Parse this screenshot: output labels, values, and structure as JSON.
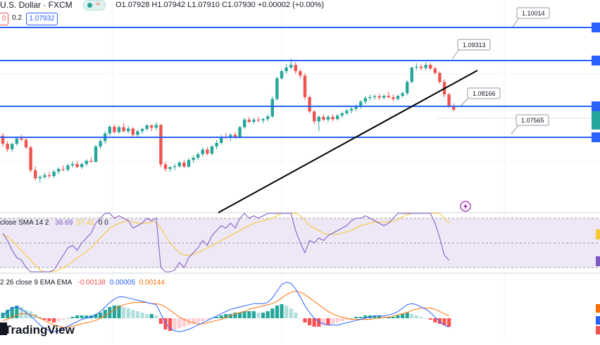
{
  "header": {
    "symbol": "U.S. Dollar · FXCM",
    "ohlc": "O1.07928 H1.07942 L1.07910 C1.07930 +0.00002 (+0.00%)",
    "tag_left": "0",
    "spread": "0.2",
    "bid_box": "1.07932"
  },
  "price_labels": [
    "1.10014",
    "1.09313",
    "1.08166",
    "1.07565"
  ],
  "rsi": {
    "title": "close SMA 14 2",
    "v1": "36.69",
    "v2": "57.41",
    "v3": "0 0"
  },
  "macd": {
    "title": "2 26 close 9 EMA EMA",
    "v1": "-0.00138",
    "v2": "0.00005",
    "v3": "0.00144"
  },
  "watermark": "TradingView",
  "colors": {
    "up": "#26a69a",
    "down": "#ef5350",
    "level": "#2962ff",
    "rsi": "#7e57c2",
    "rsi_ma": "#f7c830",
    "rsi_bg": "#ede7f6",
    "macd": "#2962ff",
    "signal": "#ff6d00"
  },
  "chart_data": [
    {
      "type": "candlestick",
      "title": "",
      "horizontal_levels": [
        1.10014,
        1.09313,
        1.08166,
        1.07565
      ],
      "trendline": "rising support from 1.0670 to 1.0935",
      "ylim": [
        1.063,
        1.103
      ],
      "candles": [
        [
          1.076,
          1.0766,
          1.0735,
          1.0742
        ],
        [
          1.0742,
          1.0748,
          1.0724,
          1.073
        ],
        [
          1.073,
          1.0744,
          1.0724,
          1.0742
        ],
        [
          1.0742,
          1.0758,
          1.0738,
          1.0754
        ],
        [
          1.0754,
          1.0762,
          1.0748,
          1.0751
        ],
        [
          1.0751,
          1.0756,
          1.0731,
          1.0734
        ],
        [
          1.0734,
          1.0738,
          1.0678,
          1.0683
        ],
        [
          1.0683,
          1.0692,
          1.066,
          1.0665
        ],
        [
          1.0665,
          1.0672,
          1.0655,
          1.0668
        ],
        [
          1.0668,
          1.0678,
          1.0664,
          1.0672
        ],
        [
          1.0672,
          1.068,
          1.0665,
          1.067
        ],
        [
          1.067,
          1.0684,
          1.0666,
          1.068
        ],
        [
          1.068,
          1.069,
          1.0674,
          1.0686
        ],
        [
          1.0686,
          1.0694,
          1.068,
          1.0684
        ],
        [
          1.0684,
          1.0698,
          1.068,
          1.0694
        ],
        [
          1.0694,
          1.0703,
          1.0689,
          1.0697
        ],
        [
          1.0697,
          1.0704,
          1.0688,
          1.069
        ],
        [
          1.069,
          1.07,
          1.0686,
          1.0697
        ],
        [
          1.0697,
          1.0708,
          1.0692,
          1.0704
        ],
        [
          1.0704,
          1.0712,
          1.07,
          1.0702
        ],
        [
          1.0702,
          1.074,
          1.07,
          1.0736
        ],
        [
          1.0736,
          1.0752,
          1.0731,
          1.0748
        ],
        [
          1.0748,
          1.077,
          1.0742,
          1.0765
        ],
        [
          1.0765,
          1.0784,
          1.076,
          1.078
        ],
        [
          1.078,
          1.0785,
          1.0765,
          1.0768
        ],
        [
          1.0768,
          1.0783,
          1.0765,
          1.0779
        ],
        [
          1.0779,
          1.0788,
          1.0767,
          1.077
        ],
        [
          1.077,
          1.0782,
          1.0765,
          1.0776
        ],
        [
          1.0776,
          1.0779,
          1.0758,
          1.0762
        ],
        [
          1.0762,
          1.0774,
          1.0756,
          1.077
        ],
        [
          1.077,
          1.0778,
          1.0764,
          1.0775
        ],
        [
          1.0775,
          1.0786,
          1.077,
          1.0783
        ],
        [
          1.0783,
          1.0785,
          1.077,
          1.0778
        ],
        [
          1.0778,
          1.079,
          1.0772,
          1.0784
        ],
        [
          1.0784,
          1.0786,
          1.069,
          1.0696
        ],
        [
          1.0696,
          1.0702,
          1.068,
          1.0686
        ],
        [
          1.0686,
          1.0692,
          1.068,
          1.069
        ],
        [
          1.069,
          1.0698,
          1.0684,
          1.0692
        ],
        [
          1.0692,
          1.0704,
          1.0688,
          1.07
        ],
        [
          1.07,
          1.0706,
          1.0688,
          1.0691
        ],
        [
          1.0691,
          1.071,
          1.0688,
          1.0706
        ],
        [
          1.0706,
          1.0716,
          1.07,
          1.0711
        ],
        [
          1.0711,
          1.0724,
          1.0706,
          1.0719
        ],
        [
          1.0719,
          1.0734,
          1.0714,
          1.0729
        ],
        [
          1.0729,
          1.0735,
          1.0716,
          1.072
        ],
        [
          1.072,
          1.074,
          1.0716,
          1.0736
        ],
        [
          1.0736,
          1.075,
          1.073,
          1.0744
        ],
        [
          1.0744,
          1.0762,
          1.074,
          1.0758
        ],
        [
          1.0758,
          1.0766,
          1.0752,
          1.0755
        ],
        [
          1.0755,
          1.0766,
          1.0748,
          1.0762
        ],
        [
          1.0762,
          1.0768,
          1.0754,
          1.0757
        ],
        [
          1.0757,
          1.0782,
          1.0754,
          1.0779
        ],
        [
          1.0779,
          1.08,
          1.0775,
          1.0796
        ],
        [
          1.0796,
          1.0802,
          1.0788,
          1.0791
        ],
        [
          1.0791,
          1.08,
          1.0786,
          1.0796
        ],
        [
          1.0796,
          1.0802,
          1.079,
          1.0794
        ],
        [
          1.0794,
          1.08,
          1.0788,
          1.0797
        ],
        [
          1.0797,
          1.0808,
          1.0792,
          1.0803
        ],
        [
          1.0803,
          1.0848,
          1.08,
          1.0842
        ],
        [
          1.0842,
          1.0892,
          1.0838,
          1.0888
        ],
        [
          1.0888,
          1.0908,
          1.0884,
          1.0904
        ],
        [
          1.0904,
          1.092,
          1.0898,
          1.0912
        ],
        [
          1.0912,
          1.0932,
          1.0908,
          1.0918
        ],
        [
          1.0918,
          1.0924,
          1.0898,
          1.0904
        ],
        [
          1.0904,
          1.0908,
          1.0888,
          1.0894
        ],
        [
          1.0894,
          1.09,
          1.084,
          1.0846
        ],
        [
          1.0846,
          1.085,
          1.081,
          1.0814
        ],
        [
          1.0814,
          1.0818,
          1.0786,
          1.0792
        ],
        [
          1.0792,
          1.0806,
          1.077,
          1.0802
        ],
        [
          1.0802,
          1.0808,
          1.0792,
          1.0796
        ],
        [
          1.0796,
          1.0806,
          1.079,
          1.0802
        ],
        [
          1.0802,
          1.0808,
          1.0792,
          1.0797
        ],
        [
          1.0797,
          1.0808,
          1.0794,
          1.0805
        ],
        [
          1.0805,
          1.0814,
          1.08,
          1.081
        ],
        [
          1.081,
          1.082,
          1.0806,
          1.0816
        ],
        [
          1.0816,
          1.0824,
          1.081,
          1.082
        ],
        [
          1.082,
          1.083,
          1.0814,
          1.0826
        ],
        [
          1.0826,
          1.084,
          1.082,
          1.0836
        ],
        [
          1.0836,
          1.0848,
          1.083,
          1.0844
        ],
        [
          1.0844,
          1.0852,
          1.0838,
          1.0846
        ],
        [
          1.0846,
          1.0852,
          1.084,
          1.0848
        ],
        [
          1.0848,
          1.0854,
          1.084,
          1.0845
        ],
        [
          1.0845,
          1.0852,
          1.084,
          1.0849
        ],
        [
          1.0849,
          1.0858,
          1.0843,
          1.0846
        ],
        [
          1.0846,
          1.0852,
          1.0836,
          1.0842
        ],
        [
          1.0842,
          1.0852,
          1.0838,
          1.0849
        ],
        [
          1.0849,
          1.0858,
          1.0845,
          1.0855
        ],
        [
          1.0855,
          1.0884,
          1.085,
          1.088
        ],
        [
          1.088,
          1.0914,
          1.0876,
          1.0912
        ],
        [
          1.0912,
          1.0922,
          1.0906,
          1.0914
        ],
        [
          1.0914,
          1.092,
          1.0906,
          1.0911
        ],
        [
          1.0911,
          1.0924,
          1.0906,
          1.0918
        ],
        [
          1.0918,
          1.0922,
          1.0906,
          1.091
        ],
        [
          1.091,
          1.0914,
          1.0896,
          1.09
        ],
        [
          1.09,
          1.0904,
          1.0876,
          1.088
        ],
        [
          1.088,
          1.0886,
          1.0846,
          1.0852
        ],
        [
          1.0852,
          1.0856,
          1.0822,
          1.0826
        ],
        [
          1.0826,
          1.0832,
          1.0814,
          1.0818
        ]
      ]
    },
    {
      "type": "line",
      "title": "RSI close SMA 14 2",
      "series": [
        {
          "values": [
            58,
            52,
            44,
            38,
            36,
            30,
            22,
            18,
            16,
            20,
            24,
            28,
            34,
            40,
            46,
            48,
            44,
            50,
            54,
            58,
            66,
            70,
            74,
            76,
            70,
            72,
            70,
            68,
            62,
            64,
            66,
            70,
            68,
            70,
            30,
            22,
            26,
            28,
            34,
            30,
            38,
            42,
            46,
            52,
            48,
            56,
            60,
            64,
            62,
            66,
            62,
            70,
            74,
            70,
            72,
            70,
            72,
            75,
            84,
            88,
            90,
            84,
            78,
            60,
            50,
            42,
            52,
            50,
            54,
            52,
            56,
            58,
            60,
            62,
            64,
            68,
            70,
            70,
            72,
            70,
            68,
            66,
            64,
            66,
            70,
            74,
            82,
            88,
            84,
            86,
            82,
            80,
            76,
            66,
            54,
            40,
            36
          ]
        },
        {
          "values": [
            56,
            55,
            52,
            48,
            44,
            40,
            36,
            32,
            28,
            26,
            25,
            26,
            28,
            30,
            32,
            35,
            38,
            40,
            43,
            46,
            50,
            54,
            58,
            62,
            64,
            66,
            67,
            68,
            67,
            66,
            66,
            66,
            67,
            67,
            62,
            56,
            50,
            46,
            42,
            40,
            40,
            41,
            42,
            44,
            46,
            48,
            50,
            52,
            54,
            56,
            58,
            60,
            62,
            64,
            66,
            67,
            68,
            69,
            70,
            72,
            74,
            76,
            77,
            76,
            72,
            68,
            64,
            62,
            60,
            58,
            57,
            57,
            57,
            58,
            59,
            60,
            62,
            64,
            65,
            66,
            67,
            67,
            67,
            67,
            68,
            69,
            71,
            73,
            75,
            76,
            77,
            78,
            78,
            77,
            74,
            70,
            66
          ]
        }
      ]
    },
    {
      "type": "bar",
      "title": "MACD 2 26 close 9 EMA EMA",
      "series": [
        {
          "name": "histogram",
          "values": [
            4,
            6,
            8,
            9,
            8,
            6,
            5,
            3,
            1,
            -1,
            -2,
            -3,
            -2,
            -1,
            0,
            1,
            2,
            2,
            2,
            2,
            3,
            4,
            6,
            8,
            9,
            9,
            8,
            7,
            6,
            5,
            4,
            3,
            3,
            2,
            -4,
            -8,
            -9,
            -8,
            -7,
            -6,
            -5,
            -4,
            -3,
            -2,
            -1,
            0,
            1,
            2,
            3,
            3,
            4,
            4,
            5,
            5,
            5,
            4,
            4,
            5,
            7,
            9,
            10,
            9,
            7,
            4,
            0,
            -3,
            -5,
            -6,
            -6,
            -5,
            -5,
            -4,
            -3,
            -2,
            -1,
            0,
            1,
            1,
            2,
            2,
            2,
            2,
            1,
            1,
            1,
            2,
            3,
            4,
            3,
            2,
            1,
            0,
            -1,
            -3,
            -4,
            -5,
            -6
          ]
        },
        {
          "name": "macd",
          "values": [
            2,
            6,
            9,
            10,
            8,
            5,
            2,
            -2,
            -6,
            -9,
            -11,
            -12,
            -11,
            -9,
            -7,
            -5,
            -3,
            -1,
            0,
            1,
            3,
            6,
            10,
            14,
            17,
            19,
            19,
            18,
            17,
            16,
            15,
            14,
            13,
            12,
            4,
            -4,
            -9,
            -11,
            -12,
            -11,
            -10,
            -8,
            -6,
            -4,
            -2,
            0,
            2,
            4,
            6,
            8,
            9,
            10,
            11,
            12,
            13,
            13,
            13,
            14,
            18,
            24,
            30,
            32,
            31,
            26,
            19,
            11,
            5,
            0,
            -3,
            -5,
            -6,
            -6,
            -6,
            -5,
            -4,
            -3,
            -2,
            -1,
            0,
            1,
            2,
            2,
            2,
            3,
            4,
            6,
            9,
            12,
            13,
            12,
            10,
            8,
            5,
            1,
            -3,
            -6,
            -8
          ]
        },
        {
          "name": "signal",
          "values": [
            -2,
            -1,
            1,
            3,
            4,
            4,
            3,
            2,
            0,
            -2,
            -4,
            -6,
            -7,
            -8,
            -8,
            -7,
            -6,
            -5,
            -4,
            -3,
            -2,
            0,
            2,
            5,
            8,
            10,
            12,
            13,
            14,
            14,
            14,
            14,
            13,
            13,
            12,
            10,
            7,
            4,
            1,
            -1,
            -3,
            -4,
            -5,
            -5,
            -4,
            -3,
            -2,
            -1,
            1,
            2,
            4,
            5,
            6,
            8,
            9,
            10,
            11,
            12,
            13,
            15,
            18,
            21,
            23,
            24,
            23,
            21,
            18,
            15,
            12,
            9,
            6,
            4,
            2,
            1,
            0,
            -1,
            -1,
            -1,
            -1,
            -1,
            0,
            0,
            1,
            1,
            2,
            3,
            4,
            5,
            7,
            8,
            9,
            9,
            9,
            8,
            6,
            4,
            2
          ]
        }
      ]
    }
  ]
}
